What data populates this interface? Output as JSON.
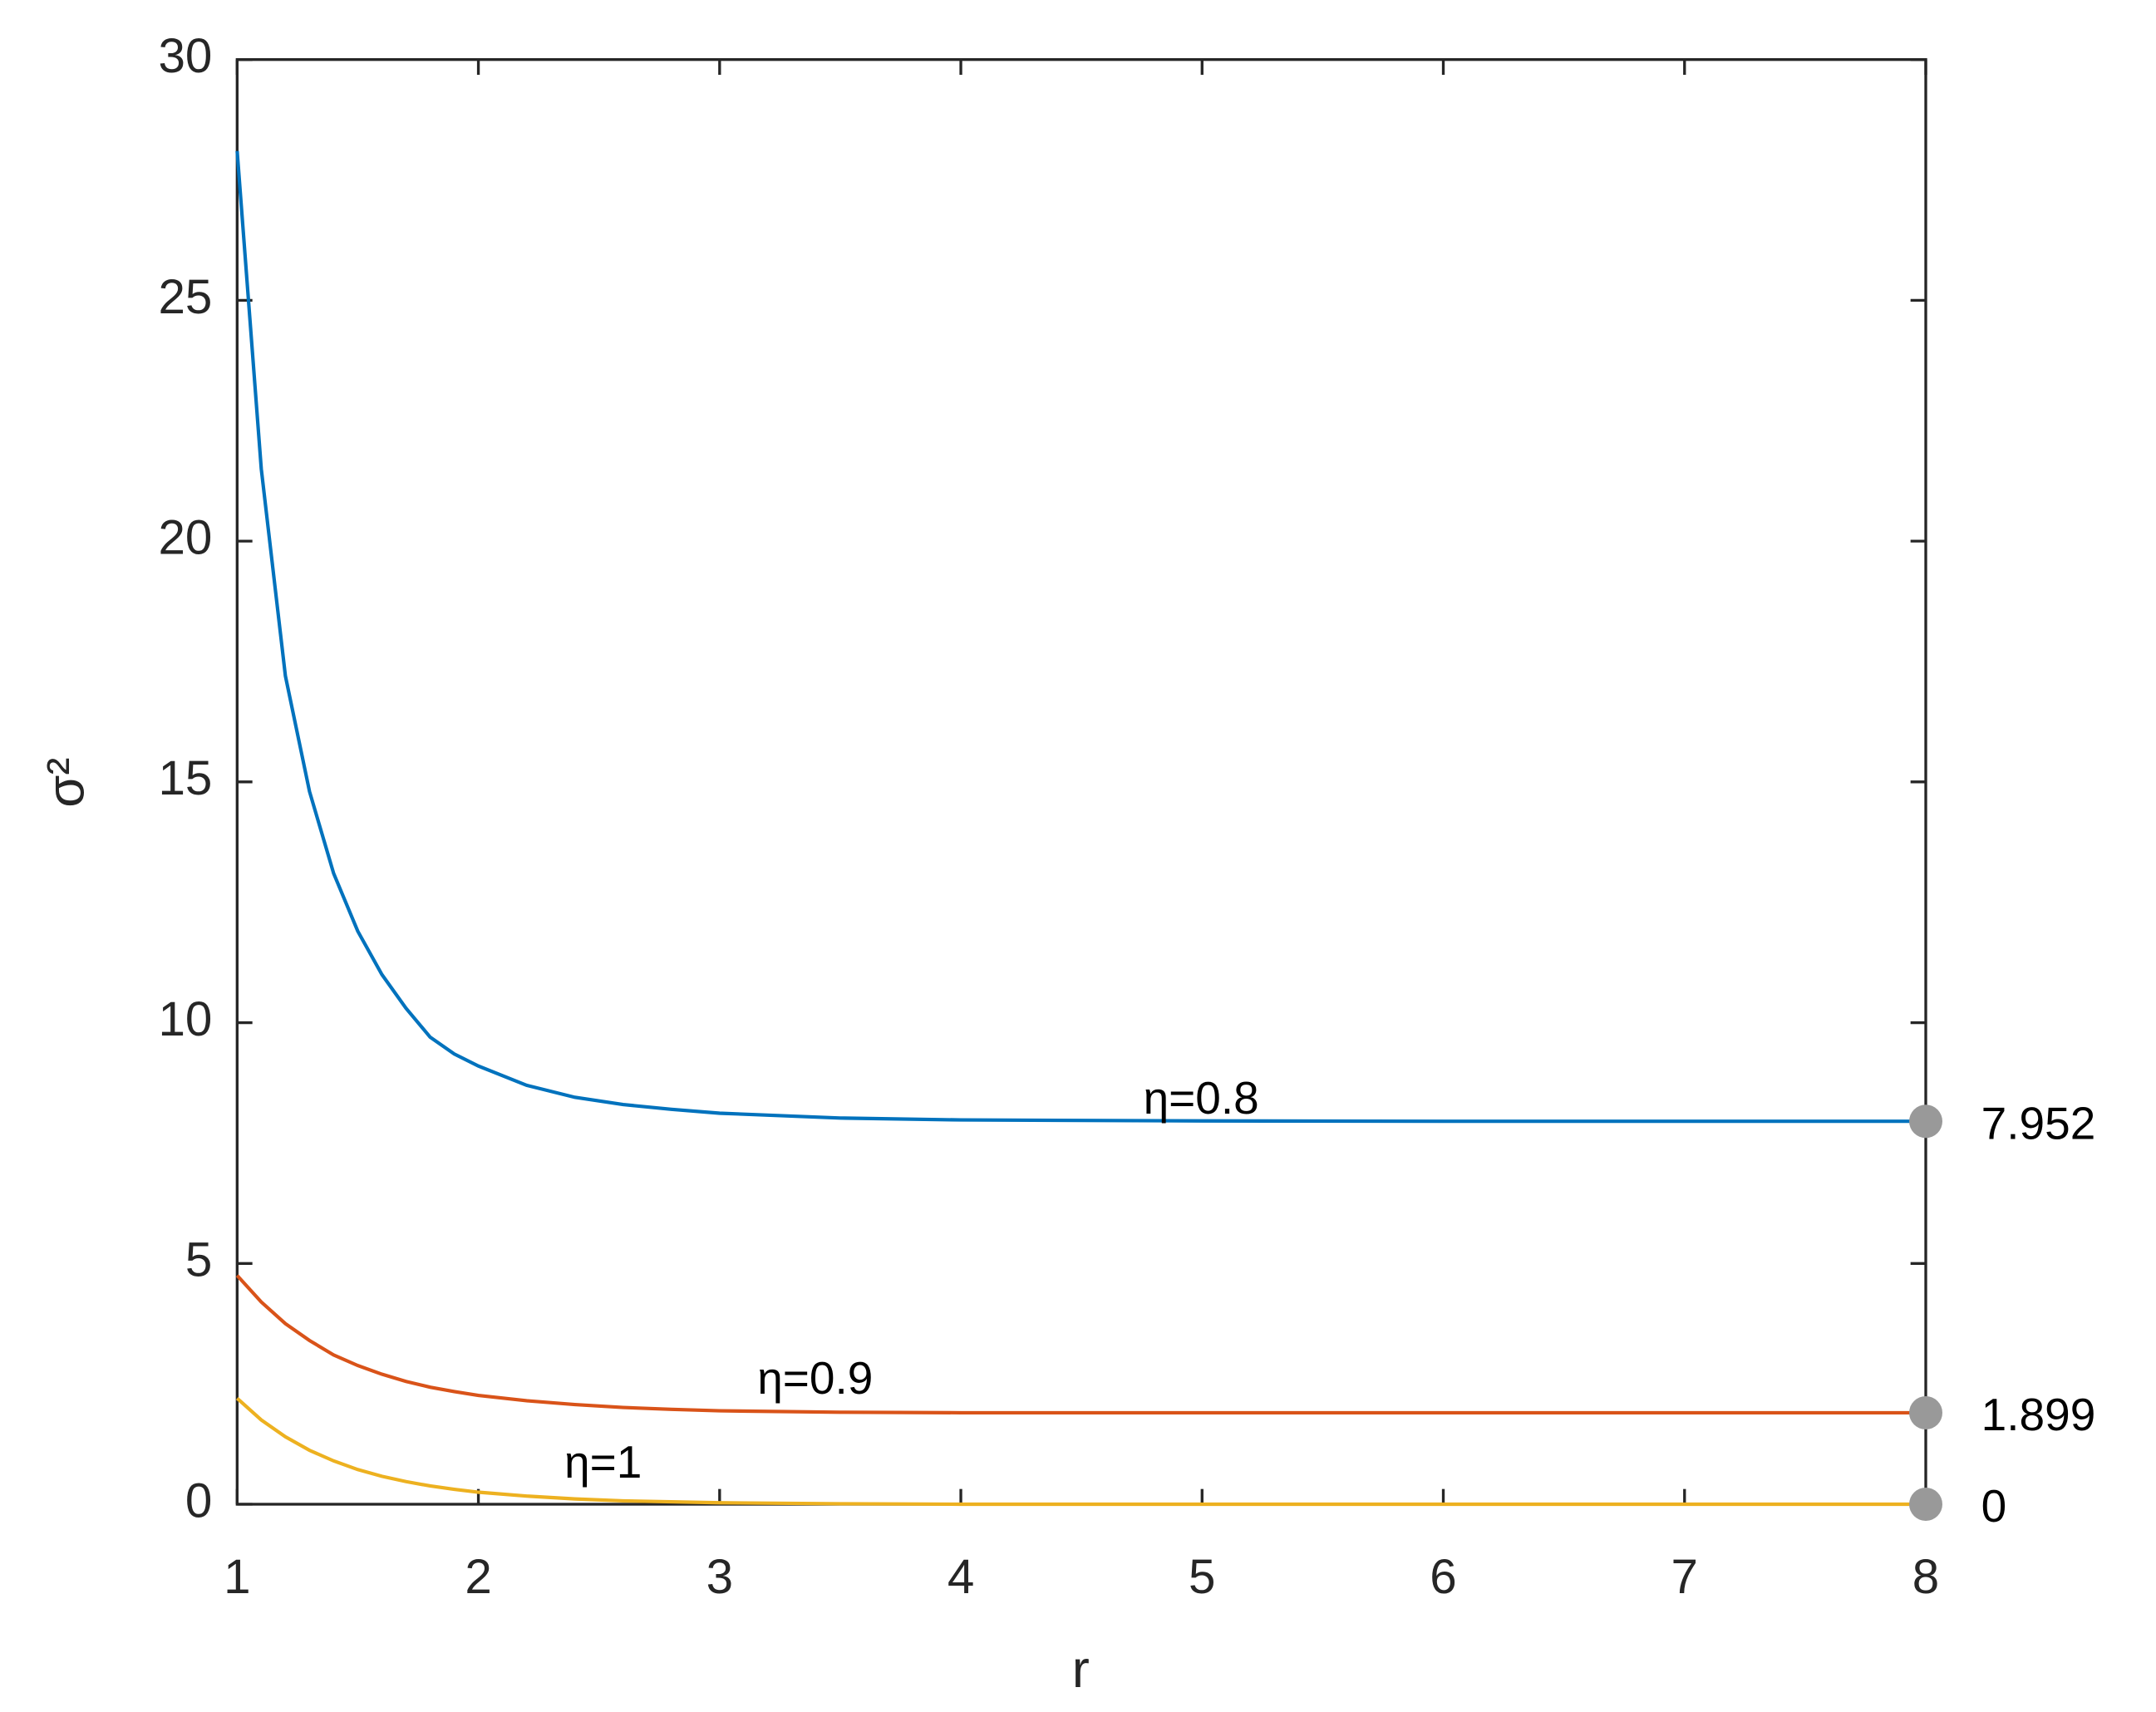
{
  "chart_data": {
    "type": "line",
    "x_label": "r",
    "y_label": "σ²",
    "x": [
      1,
      1.1,
      1.2,
      1.3,
      1.4,
      1.5,
      1.6,
      1.7,
      1.8,
      1.9,
      2,
      2.2,
      2.4,
      2.6,
      2.8,
      3,
      3.5,
      4,
      5,
      6,
      7,
      8
    ],
    "series": [
      {
        "name": "η=0.8",
        "color": "#0072bd",
        "values": [
          28.1,
          21.5,
          17.2,
          14.8,
          13.1,
          11.9,
          11.0,
          10.3,
          9.7,
          9.35,
          9.1,
          8.7,
          8.45,
          8.3,
          8.2,
          8.12,
          8.02,
          7.98,
          7.96,
          7.952,
          7.952,
          7.952
        ]
      },
      {
        "name": "η=0.9",
        "color": "#d95319",
        "values": [
          4.75,
          4.2,
          3.75,
          3.4,
          3.1,
          2.88,
          2.7,
          2.55,
          2.43,
          2.34,
          2.26,
          2.15,
          2.07,
          2.01,
          1.97,
          1.94,
          1.91,
          1.9,
          1.899,
          1.899,
          1.899,
          1.899
        ]
      },
      {
        "name": "η=1",
        "color": "#edb120",
        "values": [
          2.2,
          1.75,
          1.4,
          1.12,
          0.9,
          0.72,
          0.58,
          0.47,
          0.38,
          0.31,
          0.25,
          0.17,
          0.11,
          0.07,
          0.05,
          0.03,
          0.01,
          0,
          0,
          0,
          0,
          0
        ]
      }
    ],
    "label_last_point": true,
    "marker_color": "#999999",
    "xlim": [
      1,
      8
    ],
    "xticks": [
      1,
      2,
      3,
      4,
      5,
      6,
      7,
      8
    ],
    "ylim": [
      0,
      30
    ],
    "yticks": [
      0,
      5,
      10,
      15,
      20,
      25,
      30
    ],
    "grid": false
  }
}
